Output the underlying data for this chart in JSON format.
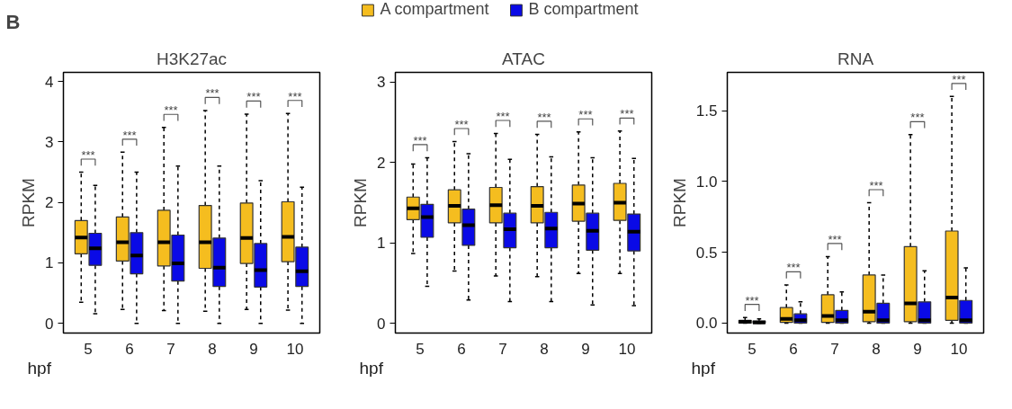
{
  "chart_data": [
    {
      "type": "box",
      "title": "H3K27ac",
      "xlabel": "hpf",
      "ylabel": "RPKM",
      "categories": [
        "5",
        "6",
        "7",
        "8",
        "9",
        "10"
      ],
      "ylim": [
        -0.16,
        4.15
      ],
      "yticks": [
        0,
        1,
        2,
        3,
        4
      ],
      "grid": false,
      "legend": "top",
      "annotations": [
        "B",
        "***",
        "***",
        "***",
        "***",
        "***",
        "***"
      ],
      "series": [
        {
          "name": "A compartment",
          "color": "#f5bd1f",
          "boxes": [
            {
              "low": 0.35,
              "q1": 1.15,
              "median": 1.42,
              "q3": 1.7,
              "high": 2.5
            },
            {
              "low": 0.23,
              "q1": 1.03,
              "median": 1.34,
              "q3": 1.76,
              "high": 2.83
            },
            {
              "low": 0.21,
              "q1": 0.95,
              "median": 1.34,
              "q3": 1.87,
              "high": 3.24
            },
            {
              "low": 0.2,
              "q1": 0.91,
              "median": 1.34,
              "q3": 1.95,
              "high": 3.52
            },
            {
              "low": 0.23,
              "q1": 0.99,
              "median": 1.41,
              "q3": 1.99,
              "high": 3.46
            },
            {
              "low": 0.22,
              "q1": 1.02,
              "median": 1.43,
              "q3": 2.01,
              "high": 3.47
            }
          ]
        },
        {
          "name": "B compartment",
          "color": "#0a0ae6",
          "boxes": [
            {
              "low": 0.16,
              "q1": 0.96,
              "median": 1.24,
              "q3": 1.49,
              "high": 2.28
            },
            {
              "low": 0,
              "q1": 0.82,
              "median": 1.12,
              "q3": 1.5,
              "high": 2.5
            },
            {
              "low": 0,
              "q1": 0.7,
              "median": 0.99,
              "q3": 1.46,
              "high": 2.6
            },
            {
              "low": 0,
              "q1": 0.61,
              "median": 0.92,
              "q3": 1.41,
              "high": 2.6
            },
            {
              "low": 0,
              "q1": 0.6,
              "median": 0.88,
              "q3": 1.32,
              "high": 2.36
            },
            {
              "low": 0,
              "q1": 0.61,
              "median": 0.86,
              "q3": 1.26,
              "high": 2.25
            }
          ]
        }
      ]
    },
    {
      "type": "box",
      "title": "ATAC",
      "xlabel": "hpf",
      "ylabel": "RPKM",
      "categories": [
        "5",
        "6",
        "7",
        "8",
        "9",
        "10"
      ],
      "ylim": [
        -0.12,
        3.12
      ],
      "yticks": [
        0,
        1,
        2,
        3
      ],
      "grid": false,
      "annotations": [
        "***",
        "***",
        "***",
        "***",
        "***",
        "***"
      ],
      "series": [
        {
          "color": "#f5bd1f",
          "boxes": [
            {
              "low": 0.87,
              "q1": 1.29,
              "median": 1.43,
              "q3": 1.57,
              "high": 1.98
            },
            {
              "low": 0.65,
              "q1": 1.25,
              "median": 1.46,
              "q3": 1.66,
              "high": 2.26
            },
            {
              "low": 0.59,
              "q1": 1.25,
              "median": 1.47,
              "q3": 1.69,
              "high": 2.36
            },
            {
              "low": 0.58,
              "q1": 1.25,
              "median": 1.46,
              "q3": 1.7,
              "high": 2.35
            },
            {
              "low": 0.62,
              "q1": 1.27,
              "median": 1.49,
              "q3": 1.72,
              "high": 2.38
            },
            {
              "low": 0.62,
              "q1": 1.28,
              "median": 1.5,
              "q3": 1.74,
              "high": 2.39
            }
          ]
        },
        {
          "color": "#0a0ae6",
          "boxes": [
            {
              "low": 0.46,
              "q1": 1.07,
              "median": 1.32,
              "q3": 1.48,
              "high": 2.06
            },
            {
              "low": 0.29,
              "q1": 0.97,
              "median": 1.22,
              "q3": 1.42,
              "high": 2.11
            },
            {
              "low": 0.27,
              "q1": 0.94,
              "median": 1.17,
              "q3": 1.37,
              "high": 2.04
            },
            {
              "low": 0.27,
              "q1": 0.94,
              "median": 1.18,
              "q3": 1.38,
              "high": 2.07
            },
            {
              "low": 0.23,
              "q1": 0.91,
              "median": 1.15,
              "q3": 1.37,
              "high": 2.06
            },
            {
              "low": 0.22,
              "q1": 0.9,
              "median": 1.14,
              "q3": 1.36,
              "high": 2.05
            }
          ]
        }
      ]
    },
    {
      "type": "box",
      "title": "RNA",
      "xlabel": "hpf",
      "ylabel": "RPKM",
      "categories": [
        "5",
        "6",
        "7",
        "8",
        "9",
        "10"
      ],
      "ylim": [
        -0.07,
        1.77
      ],
      "yticks": [
        {
          "value": 0,
          "label": "0.0"
        },
        0.5,
        {
          "value": 1,
          "label": "1.0"
        },
        1.5
      ],
      "grid": false,
      "annotations": [
        "***",
        "***",
        "***",
        "***",
        "***",
        "***"
      ],
      "series": [
        {
          "color": "#f5bd1f",
          "boxes": [
            {
              "low": 0,
              "q1": 0,
              "median": 0.01,
              "q3": 0.02,
              "high": 0.04
            },
            {
              "low": 0,
              "q1": 0.005,
              "median": 0.03,
              "q3": 0.11,
              "high": 0.27
            },
            {
              "low": 0,
              "q1": 0.005,
              "median": 0.05,
              "q3": 0.2,
              "high": 0.47
            },
            {
              "low": 0,
              "q1": 0.01,
              "median": 0.08,
              "q3": 0.34,
              "high": 0.85
            },
            {
              "low": 0,
              "q1": 0.01,
              "median": 0.14,
              "q3": 0.54,
              "high": 1.33
            },
            {
              "low": 0,
              "q1": 0.02,
              "median": 0.18,
              "q3": 0.65,
              "high": 1.6
            }
          ]
        },
        {
          "color": "#0a0ae6",
          "boxes": [
            {
              "low": 0,
              "q1": 0,
              "median": 0.005,
              "q3": 0.015,
              "high": 0.03
            },
            {
              "low": 0,
              "q1": 0,
              "median": 0.02,
              "q3": 0.065,
              "high": 0.15
            },
            {
              "low": 0,
              "q1": 0,
              "median": 0.02,
              "q3": 0.09,
              "high": 0.22
            },
            {
              "low": 0,
              "q1": 0,
              "median": 0.02,
              "q3": 0.14,
              "high": 0.34
            },
            {
              "low": 0,
              "q1": 0,
              "median": 0.02,
              "q3": 0.15,
              "high": 0.37
            },
            {
              "low": 0,
              "q1": 0,
              "median": 0.02,
              "q3": 0.16,
              "high": 0.39
            }
          ]
        }
      ]
    }
  ]
}
